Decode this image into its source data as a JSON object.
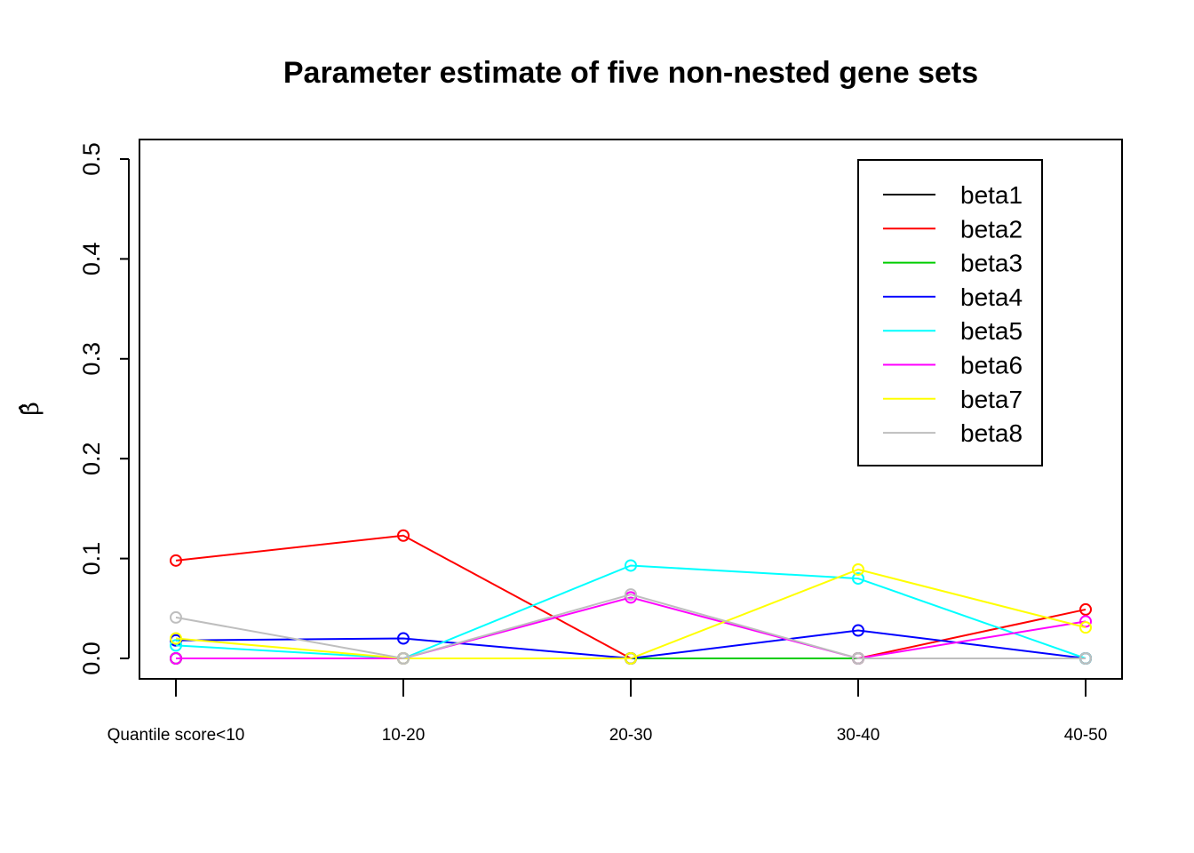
{
  "chart_data": {
    "type": "line",
    "title": "Parameter estimate of five non-nested gene sets",
    "xlabel": "",
    "ylabel": "β̂",
    "categories": [
      "Quantile score<10",
      "10-20",
      "20-30",
      "30-40",
      "40-50"
    ],
    "ylim": [
      -0.02,
      0.52
    ],
    "yticks": [
      "0.0",
      "0.1",
      "0.2",
      "0.3",
      "0.4",
      "0.5"
    ],
    "legend_position": "top-right",
    "grid": false,
    "series": [
      {
        "name": "beta1",
        "color": "#000000",
        "values": [
          0.0,
          0.0,
          0.0,
          0.0,
          0.0
        ]
      },
      {
        "name": "beta2",
        "color": "#ff0000",
        "values": [
          0.098,
          0.123,
          0.0,
          0.0,
          0.049
        ]
      },
      {
        "name": "beta3",
        "color": "#00cd00",
        "values": [
          0.0,
          0.0,
          0.0,
          0.0,
          0.0
        ]
      },
      {
        "name": "beta4",
        "color": "#0000ff",
        "values": [
          0.018,
          0.02,
          0.0,
          0.028,
          0.0
        ]
      },
      {
        "name": "beta5",
        "color": "#00ffff",
        "values": [
          0.013,
          0.0,
          0.093,
          0.08,
          0.0
        ]
      },
      {
        "name": "beta6",
        "color": "#ff00ff",
        "values": [
          0.0,
          0.0,
          0.061,
          0.0,
          0.037
        ]
      },
      {
        "name": "beta7",
        "color": "#ffff00",
        "values": [
          0.02,
          0.0,
          0.0,
          0.089,
          0.031
        ]
      },
      {
        "name": "beta8",
        "color": "#bebebe",
        "values": [
          0.041,
          0.0,
          0.064,
          0.0,
          0.0
        ]
      }
    ]
  }
}
